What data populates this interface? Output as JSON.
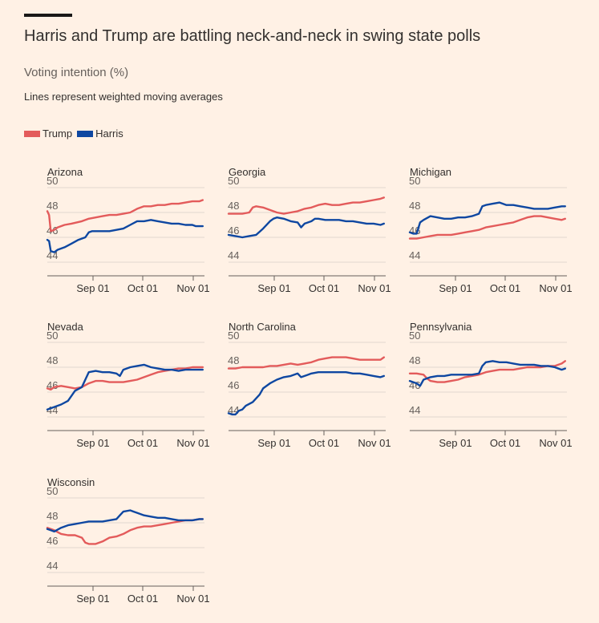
{
  "header": {
    "title": "Harris and Trump are battling neck-and-neck in swing state polls",
    "subtitle": "Voting intention (%)",
    "note": "Lines represent weighted moving averages"
  },
  "legend": [
    {
      "name": "Trump",
      "color": "#e35b5b"
    },
    {
      "name": "Harris",
      "color": "#0e47a1"
    }
  ],
  "chart_data": [
    {
      "type": "line",
      "title": "Arizona",
      "x_ticks": [
        "Sep 01",
        "Oct 01",
        "Nov 01"
      ],
      "ylim": [
        44,
        50
      ],
      "y_ticks": [
        44,
        46,
        48,
        50
      ],
      "grid": true,
      "series": [
        {
          "name": "Trump",
          "color": "#e35b5b",
          "x": [
            0,
            1,
            2,
            4,
            6,
            10,
            14,
            20,
            24,
            28,
            32,
            36,
            40,
            44,
            48,
            52,
            56,
            60,
            64,
            68,
            72,
            76,
            80,
            84,
            88,
            90
          ],
          "values": [
            48.1,
            47.8,
            46.5,
            46.6,
            46.8,
            47.0,
            47.1,
            47.3,
            47.5,
            47.6,
            47.7,
            47.8,
            47.8,
            47.9,
            48.0,
            48.3,
            48.5,
            48.5,
            48.6,
            48.6,
            48.7,
            48.7,
            48.8,
            48.9,
            48.9,
            49.0
          ]
        },
        {
          "name": "Harris",
          "color": "#0e47a1",
          "x": [
            0,
            1,
            2,
            4,
            6,
            10,
            14,
            18,
            22,
            24,
            26,
            28,
            32,
            36,
            40,
            44,
            48,
            52,
            56,
            60,
            64,
            68,
            72,
            76,
            80,
            84,
            86,
            88,
            90
          ],
          "values": [
            45.8,
            45.7,
            44.9,
            44.8,
            45.0,
            45.2,
            45.5,
            45.8,
            46.0,
            46.4,
            46.5,
            46.5,
            46.5,
            46.5,
            46.6,
            46.7,
            47.0,
            47.3,
            47.3,
            47.4,
            47.3,
            47.2,
            47.1,
            47.1,
            47.0,
            47.0,
            46.9,
            46.9,
            46.9
          ]
        }
      ]
    },
    {
      "type": "line",
      "title": "Georgia",
      "x_ticks": [
        "Sep 01",
        "Oct 01",
        "Nov 01"
      ],
      "ylim": [
        44,
        50
      ],
      "y_ticks": [
        44,
        46,
        48,
        50
      ],
      "grid": true,
      "series": [
        {
          "name": "Trump",
          "color": "#e35b5b",
          "x": [
            0,
            4,
            8,
            12,
            14,
            16,
            20,
            24,
            28,
            32,
            36,
            40,
            44,
            48,
            52,
            56,
            60,
            64,
            68,
            72,
            76,
            80,
            84,
            88,
            90
          ],
          "values": [
            47.9,
            47.9,
            47.9,
            48.0,
            48.4,
            48.5,
            48.4,
            48.2,
            48.0,
            47.9,
            48.0,
            48.1,
            48.3,
            48.4,
            48.6,
            48.7,
            48.6,
            48.6,
            48.7,
            48.8,
            48.8,
            48.9,
            49.0,
            49.1,
            49.2
          ]
        },
        {
          "name": "Harris",
          "color": "#0e47a1",
          "x": [
            0,
            4,
            8,
            12,
            16,
            20,
            24,
            26,
            28,
            32,
            36,
            40,
            42,
            44,
            48,
            50,
            52,
            56,
            60,
            64,
            68,
            72,
            76,
            80,
            84,
            88,
            90
          ],
          "values": [
            46.2,
            46.1,
            46.0,
            46.1,
            46.2,
            46.7,
            47.3,
            47.5,
            47.6,
            47.5,
            47.3,
            47.2,
            46.8,
            47.1,
            47.3,
            47.5,
            47.5,
            47.4,
            47.4,
            47.4,
            47.3,
            47.3,
            47.2,
            47.1,
            47.1,
            47.0,
            47.1
          ]
        }
      ]
    },
    {
      "type": "line",
      "title": "Michigan",
      "x_ticks": [
        "Sep 01",
        "Oct 01",
        "Nov 01"
      ],
      "ylim": [
        44,
        50
      ],
      "y_ticks": [
        44,
        46,
        48,
        50
      ],
      "grid": true,
      "series": [
        {
          "name": "Trump",
          "color": "#e35b5b",
          "x": [
            0,
            4,
            8,
            12,
            16,
            20,
            24,
            28,
            32,
            36,
            40,
            44,
            48,
            52,
            56,
            60,
            64,
            68,
            72,
            76,
            80,
            84,
            88,
            90
          ],
          "values": [
            45.9,
            45.9,
            46.0,
            46.1,
            46.2,
            46.2,
            46.2,
            46.3,
            46.4,
            46.5,
            46.6,
            46.8,
            46.9,
            47.0,
            47.1,
            47.2,
            47.4,
            47.6,
            47.7,
            47.7,
            47.6,
            47.5,
            47.4,
            47.5
          ]
        },
        {
          "name": "Harris",
          "color": "#0e47a1",
          "x": [
            0,
            2,
            4,
            6,
            8,
            12,
            16,
            20,
            24,
            28,
            32,
            36,
            40,
            42,
            44,
            48,
            52,
            56,
            60,
            64,
            68,
            72,
            76,
            80,
            84,
            88,
            90
          ],
          "values": [
            46.4,
            46.3,
            46.3,
            47.2,
            47.4,
            47.7,
            47.6,
            47.5,
            47.5,
            47.6,
            47.6,
            47.7,
            47.9,
            48.5,
            48.6,
            48.7,
            48.8,
            48.6,
            48.6,
            48.5,
            48.4,
            48.3,
            48.3,
            48.3,
            48.4,
            48.5,
            48.5
          ]
        }
      ]
    },
    {
      "type": "line",
      "title": "Nevada",
      "x_ticks": [
        "Sep 01",
        "Oct 01",
        "Nov 01"
      ],
      "ylim": [
        44,
        50
      ],
      "y_ticks": [
        44,
        46,
        48,
        50
      ],
      "grid": true,
      "series": [
        {
          "name": "Trump",
          "color": "#e35b5b",
          "x": [
            0,
            2,
            4,
            8,
            12,
            16,
            20,
            24,
            28,
            32,
            36,
            40,
            44,
            48,
            52,
            56,
            60,
            64,
            68,
            72,
            76,
            80,
            84,
            88,
            90
          ],
          "values": [
            46.3,
            46.2,
            46.4,
            46.5,
            46.4,
            46.3,
            46.4,
            46.7,
            46.9,
            46.9,
            46.8,
            46.8,
            46.8,
            46.9,
            47.0,
            47.2,
            47.4,
            47.6,
            47.7,
            47.8,
            47.9,
            47.9,
            48.0,
            48.0,
            48.0
          ]
        },
        {
          "name": "Harris",
          "color": "#0e47a1",
          "x": [
            0,
            4,
            8,
            12,
            16,
            20,
            22,
            24,
            28,
            32,
            36,
            40,
            42,
            44,
            48,
            52,
            56,
            60,
            64,
            68,
            72,
            76,
            80,
            84,
            88,
            90
          ],
          "values": [
            44.6,
            44.8,
            45.0,
            45.3,
            46.1,
            46.4,
            47.0,
            47.6,
            47.7,
            47.6,
            47.6,
            47.5,
            47.3,
            47.8,
            48.0,
            48.1,
            48.2,
            48.0,
            47.9,
            47.8,
            47.8,
            47.7,
            47.8,
            47.8,
            47.8,
            47.8
          ]
        }
      ]
    },
    {
      "type": "line",
      "title": "North Carolina",
      "x_ticks": [
        "Sep 01",
        "Oct 01",
        "Nov 01"
      ],
      "ylim": [
        44,
        50
      ],
      "y_ticks": [
        44,
        46,
        48,
        50
      ],
      "grid": true,
      "series": [
        {
          "name": "Trump",
          "color": "#e35b5b",
          "x": [
            0,
            4,
            8,
            12,
            16,
            20,
            24,
            28,
            32,
            36,
            40,
            44,
            48,
            52,
            56,
            60,
            64,
            68,
            72,
            76,
            80,
            84,
            88,
            90
          ],
          "values": [
            47.9,
            47.9,
            48.0,
            48.0,
            48.0,
            48.0,
            48.1,
            48.1,
            48.2,
            48.3,
            48.2,
            48.3,
            48.4,
            48.6,
            48.7,
            48.8,
            48.8,
            48.8,
            48.7,
            48.6,
            48.6,
            48.6,
            48.6,
            48.8
          ]
        },
        {
          "name": "Harris",
          "color": "#0e47a1",
          "x": [
            0,
            2,
            4,
            6,
            8,
            10,
            14,
            18,
            20,
            24,
            28,
            32,
            36,
            40,
            42,
            44,
            48,
            52,
            56,
            60,
            64,
            68,
            72,
            76,
            80,
            84,
            88,
            90
          ],
          "values": [
            44.3,
            44.2,
            44.2,
            44.5,
            44.6,
            44.9,
            45.2,
            45.8,
            46.3,
            46.7,
            47.0,
            47.2,
            47.3,
            47.5,
            47.2,
            47.3,
            47.5,
            47.6,
            47.6,
            47.6,
            47.6,
            47.6,
            47.5,
            47.5,
            47.4,
            47.3,
            47.2,
            47.3
          ]
        }
      ]
    },
    {
      "type": "line",
      "title": "Pennsylvania",
      "x_ticks": [
        "Sep 01",
        "Oct 01",
        "Nov 01"
      ],
      "ylim": [
        44,
        50
      ],
      "y_ticks": [
        44,
        46,
        48,
        50
      ],
      "grid": true,
      "series": [
        {
          "name": "Trump",
          "color": "#e35b5b",
          "x": [
            0,
            4,
            8,
            10,
            12,
            16,
            20,
            24,
            28,
            32,
            36,
            40,
            44,
            48,
            52,
            56,
            60,
            64,
            68,
            72,
            76,
            80,
            84,
            88,
            90
          ],
          "values": [
            47.5,
            47.5,
            47.4,
            47.1,
            46.9,
            46.8,
            46.8,
            46.9,
            47.0,
            47.2,
            47.3,
            47.4,
            47.6,
            47.7,
            47.8,
            47.8,
            47.8,
            47.9,
            48.0,
            48.0,
            48.0,
            48.1,
            48.1,
            48.3,
            48.5
          ]
        },
        {
          "name": "Harris",
          "color": "#0e47a1",
          "x": [
            0,
            4,
            6,
            8,
            12,
            16,
            20,
            24,
            28,
            32,
            36,
            40,
            42,
            44,
            48,
            52,
            56,
            60,
            64,
            68,
            72,
            76,
            80,
            84,
            86,
            88,
            90
          ],
          "values": [
            46.9,
            46.7,
            46.5,
            47.0,
            47.2,
            47.3,
            47.3,
            47.4,
            47.4,
            47.4,
            47.4,
            47.5,
            48.1,
            48.4,
            48.5,
            48.4,
            48.4,
            48.3,
            48.2,
            48.2,
            48.2,
            48.1,
            48.1,
            48.0,
            47.9,
            47.8,
            47.9
          ]
        }
      ]
    },
    {
      "type": "line",
      "title": "Wisconsin",
      "x_ticks": [
        "Sep 01",
        "Oct 01",
        "Nov 01"
      ],
      "ylim": [
        44,
        50
      ],
      "y_ticks": [
        44,
        46,
        48,
        50
      ],
      "grid": true,
      "series": [
        {
          "name": "Trump",
          "color": "#e35b5b",
          "x": [
            0,
            4,
            8,
            12,
            16,
            20,
            22,
            24,
            28,
            32,
            36,
            40,
            44,
            48,
            52,
            56,
            60,
            64,
            68,
            72,
            76,
            80,
            84,
            88,
            90
          ],
          "values": [
            47.6,
            47.4,
            47.1,
            47.0,
            47.0,
            46.8,
            46.4,
            46.3,
            46.3,
            46.5,
            46.8,
            46.9,
            47.1,
            47.4,
            47.6,
            47.7,
            47.7,
            47.8,
            47.9,
            48.0,
            48.1,
            48.2,
            48.2,
            48.3,
            48.3
          ]
        },
        {
          "name": "Harris",
          "color": "#0e47a1",
          "x": [
            0,
            2,
            4,
            8,
            12,
            16,
            20,
            24,
            28,
            32,
            36,
            40,
            42,
            44,
            48,
            50,
            52,
            56,
            60,
            64,
            68,
            72,
            76,
            80,
            84,
            88,
            90
          ],
          "values": [
            47.5,
            47.4,
            47.3,
            47.6,
            47.8,
            47.9,
            48.0,
            48.1,
            48.1,
            48.1,
            48.2,
            48.3,
            48.6,
            48.9,
            49.0,
            48.9,
            48.8,
            48.6,
            48.5,
            48.4,
            48.4,
            48.3,
            48.2,
            48.2,
            48.2,
            48.3,
            48.3
          ]
        }
      ]
    }
  ]
}
